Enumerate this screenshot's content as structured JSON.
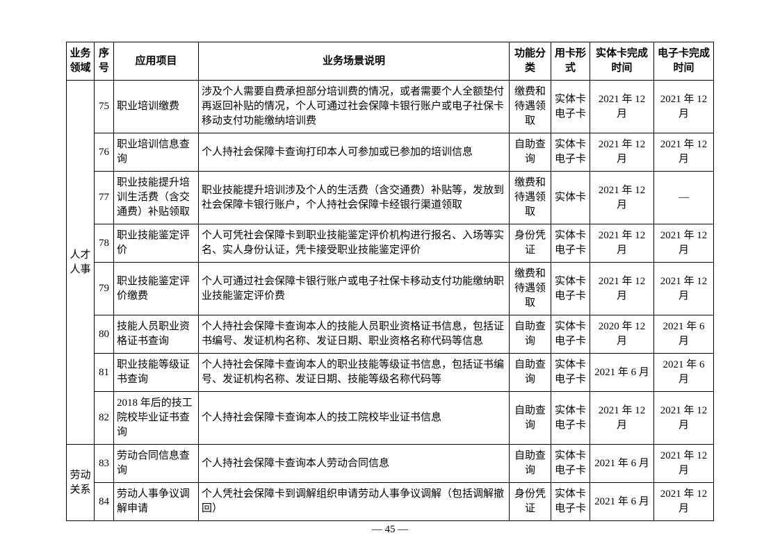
{
  "headers": {
    "domain": "业务领域",
    "seq": "序号",
    "app": "应用项目",
    "desc": "业务场景说明",
    "func": "功能分类",
    "card": "用卡形式",
    "phys": "实体卡完成时间",
    "elec": "电子卡完成时间"
  },
  "groups": [
    {
      "domain": "人才人事",
      "rows": [
        {
          "seq": "75",
          "app": "职业培训缴费",
          "desc": "涉及个人需要自费承担部分培训费的情况，或者需要个人全额垫付再返回补贴的情况，个人可通过社会保障卡银行账户或电子社保卡移动支付功能缴纳培训费",
          "func": "缴费和待遇领取",
          "card": "实体卡电子卡",
          "phys": "2021 年 12 月",
          "elec": "2021 年 12 月"
        },
        {
          "seq": "76",
          "app": "职业培训信息查询",
          "desc": "个人持社会保障卡查询打印本人可参加或已参加的培训信息",
          "func": "自助查询",
          "card": "实体卡电子卡",
          "phys": "2021 年 12 月",
          "elec": "2021 年 12 月"
        },
        {
          "seq": "77",
          "app": "职业技能提升培训生活费（含交通费）补贴领取",
          "desc": "职业技能提升培训涉及个人的生活费（含交通费）补贴等，发放到社会保障卡银行账户，个人持社会保障卡经银行渠道领取",
          "func": "缴费和待遇领取",
          "card": "实体卡",
          "phys": "2021 年 12 月",
          "elec": "—"
        },
        {
          "seq": "78",
          "app": "职业技能鉴定评价",
          "desc": "个人可凭社会保障卡到职业技能鉴定评价机构进行报名、入场等实名、实人身份认证，凭卡接受职业技能鉴定评价",
          "func": "身份凭证",
          "card": "实体卡电子卡",
          "phys": "2021 年 12 月",
          "elec": "2021 年 12 月"
        },
        {
          "seq": "79",
          "app": "职业技能鉴定评价缴费",
          "desc": "个人可通过社会保障卡银行账户或电子社保卡移动支付功能缴纳职业技能鉴定评价费",
          "func": "缴费和待遇领取",
          "card": "实体卡电子卡",
          "phys": "2021 年 12 月",
          "elec": "2021 年 12 月"
        },
        {
          "seq": "80",
          "app": "技能人员职业资格证书查询",
          "desc": "个人持社会保障卡查询本人的技能人员职业资格证书信息，包括证书编号、发证机构名称、发证日期、职业资格名称代码等信息",
          "func": "自助查询",
          "card": "实体卡电子卡",
          "phys": "2020 年 12 月",
          "elec": "2021 年 6 月"
        },
        {
          "seq": "81",
          "app": "职业技能等级证书查询",
          "desc": "个人持社会保障卡查询本人的职业技能等级证书信息，包括证书编号、发证机构名称、发证日期、技能等级名称代码等",
          "func": "自助查询",
          "card": "实体卡电子卡",
          "phys": "2021 年 6 月",
          "elec": "2021 年 6 月"
        },
        {
          "seq": "82",
          "app": "2018 年后的技工院校毕业证书查询",
          "desc": "个人持社会保障卡查询本人的技工院校毕业证书信息",
          "func": "自助查询",
          "card": "实体卡电子卡",
          "phys": "2021 年 12 月",
          "elec": "2021 年 12 月"
        }
      ]
    },
    {
      "domain": "劳动关系",
      "rows": [
        {
          "seq": "83",
          "app": "劳动合同信息查询",
          "desc": "个人持社会保障卡查询本人劳动合同信息",
          "func": "自助查询",
          "card": "实体卡电子卡",
          "phys": "2021 年 6 月",
          "elec": "2021 年 12 月"
        },
        {
          "seq": "84",
          "app": "劳动人事争议调解申请",
          "desc": "个人凭社会保障卡到调解组织申请劳动人事争议调解（包括调解撤回）",
          "func": "身份凭证",
          "card": "实体卡电子卡",
          "phys": "2021 年 6 月",
          "elec": "2021 年 12 月"
        }
      ]
    }
  ],
  "pageNumber": "— 45 —"
}
